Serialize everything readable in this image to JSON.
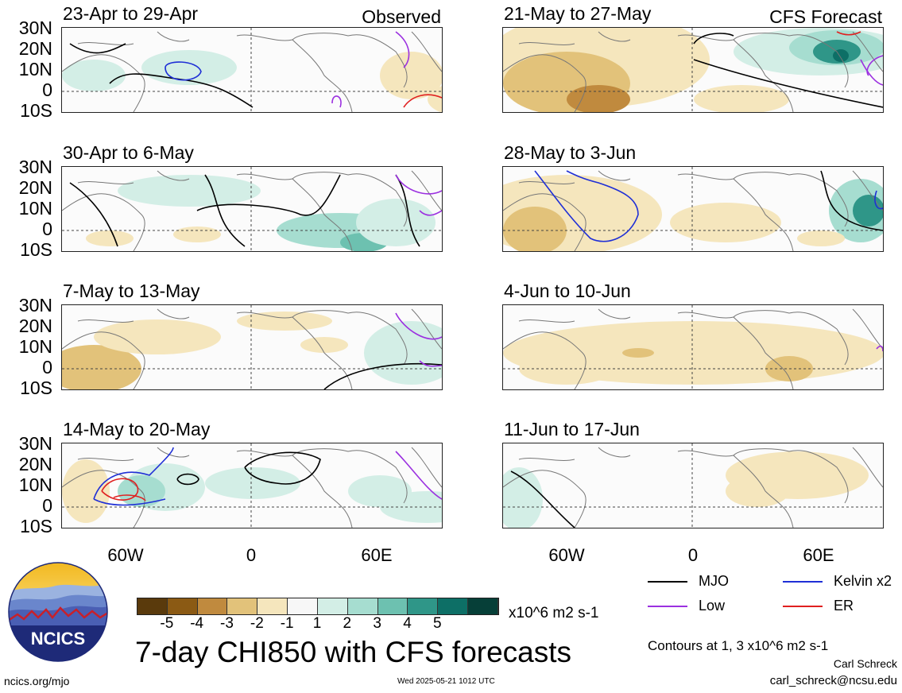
{
  "left_column": {
    "tag": "Observed",
    "panels": [
      {
        "title": "23-Apr to 29-Apr"
      },
      {
        "title": "30-Apr to 6-May"
      },
      {
        "title": "7-May to 13-May"
      },
      {
        "title": "14-May to 20-May"
      }
    ]
  },
  "right_column": {
    "tag": "CFS Forecast",
    "panels": [
      {
        "title": "21-May to 27-May"
      },
      {
        "title": "28-May to 3-Jun"
      },
      {
        "title": "4-Jun to 10-Jun"
      },
      {
        "title": "11-Jun to 17-Jun"
      }
    ]
  },
  "lat_labels": [
    "30N",
    "20N",
    "10N",
    "0",
    "10S"
  ],
  "lon_labels": [
    "60W",
    "0",
    "60E"
  ],
  "colorbar": {
    "colors": [
      "#5a3a0c",
      "#8b5a14",
      "#c08a3e",
      "#e2c27a",
      "#f5e6bd",
      "#f7f7f7",
      "#d3eee6",
      "#a6ddd0",
      "#6dc1b0",
      "#2f9688",
      "#0d6f66",
      "#063f38"
    ],
    "labels": [
      "-5",
      "-4",
      "-3",
      "-2",
      "-1",
      "1",
      "2",
      "3",
      "4",
      "5"
    ],
    "unit": "x10^6 m2 s-1"
  },
  "legend": [
    {
      "label": "MJO",
      "color": "#000000"
    },
    {
      "label": "Kelvin x2",
      "color": "#1f2fd6"
    },
    {
      "label": "Low",
      "color": "#9b30e0"
    },
    {
      "label": "ER",
      "color": "#e02020"
    }
  ],
  "main_title": "7-day CHI850 with CFS forecasts",
  "contours_note": "Contours at 1, 3 x10^6 m2 s-1",
  "author": "Carl Schreck",
  "email": "carl_schreck@ncsu.edu",
  "website": "ncics.org/mjo",
  "timestamp": "Wed 2025-05-21 1012 UTC",
  "logo_text": "NCICS"
}
